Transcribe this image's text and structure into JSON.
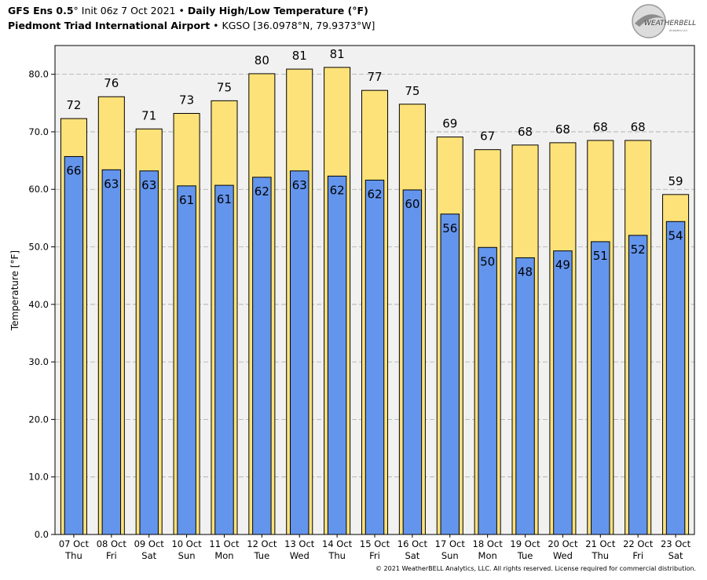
{
  "header": {
    "model": "GFS Ens 0.5",
    "deg": "°",
    "init": "Init 06z 7 Oct 2021",
    "bullet": "•",
    "product": "Daily High/Low Temperature (°F)",
    "station_name": "Piedmont Triad International Airport",
    "station_info": "KGSO [36.0978°N, 79.9373°W]"
  },
  "logo": {
    "text": "WEATHERBELL",
    "sub": "Analytics LLC"
  },
  "copyright": "© 2021 WeatherBELL Analytics, LLC. All rights reserved. License required for commercial distribution.",
  "colors": {
    "high": "#fde27a",
    "low": "#6495ed",
    "plot_bg": "#f2f1f1",
    "grid": "#aaaaaa"
  },
  "chart_data": {
    "type": "bar",
    "ylabel": "Temperature [°F]",
    "ylim": [
      0,
      85
    ],
    "yticks": [
      "0.0",
      "10.0",
      "20.0",
      "30.0",
      "40.0",
      "50.0",
      "60.0",
      "70.0",
      "80.0"
    ],
    "grid": true,
    "categories": [
      [
        "07 Oct",
        "Thu"
      ],
      [
        "08 Oct",
        "Fri"
      ],
      [
        "09 Oct",
        "Sat"
      ],
      [
        "10 Oct",
        "Sun"
      ],
      [
        "11 Oct",
        "Mon"
      ],
      [
        "12 Oct",
        "Tue"
      ],
      [
        "13 Oct",
        "Wed"
      ],
      [
        "14 Oct",
        "Thu"
      ],
      [
        "15 Oct",
        "Fri"
      ],
      [
        "16 Oct",
        "Sat"
      ],
      [
        "17 Oct",
        "Sun"
      ],
      [
        "18 Oct",
        "Mon"
      ],
      [
        "19 Oct",
        "Tue"
      ],
      [
        "20 Oct",
        "Wed"
      ],
      [
        "21 Oct",
        "Thu"
      ],
      [
        "22 Oct",
        "Fri"
      ],
      [
        "23 Oct",
        "Sat"
      ]
    ],
    "series": [
      {
        "values": [
          72.3,
          76.1,
          70.5,
          73.2,
          75.4,
          80.1,
          80.9,
          81.2,
          77.2,
          74.8,
          69.1,
          66.9,
          67.7,
          68.1,
          68.5,
          68.5,
          59.1
        ],
        "labels": [
          "72",
          "76",
          "71",
          "73",
          "75",
          "80",
          "81",
          "81",
          "77",
          "75",
          "69",
          "67",
          "68",
          "68",
          "68",
          "68",
          "59"
        ]
      },
      {
        "values": [
          65.7,
          63.4,
          63.2,
          60.6,
          60.7,
          62.1,
          63.2,
          62.3,
          61.6,
          59.9,
          55.7,
          49.9,
          48.1,
          49.3,
          50.9,
          52.0,
          54.4
        ],
        "labels": [
          "66",
          "63",
          "63",
          "61",
          "61",
          "62",
          "63",
          "62",
          "62",
          "60",
          "56",
          "50",
          "48",
          "49",
          "51",
          "52",
          "54"
        ]
      }
    ]
  }
}
